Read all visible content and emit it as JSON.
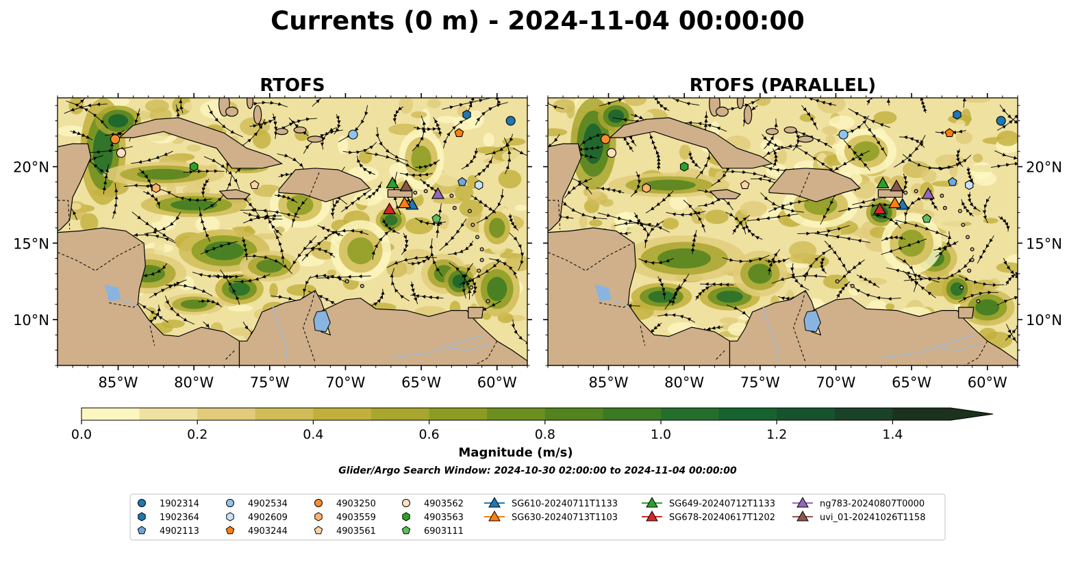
{
  "figure": {
    "title": "Currents (0 m) - 2024-11-04 00:00:00",
    "search_window": "Glider/Argo Search Window: 2024-10-30 02:00:00 to 2024-11-04 00:00:00"
  },
  "panels": [
    {
      "id": "rtofs",
      "title": "RTOFS"
    },
    {
      "id": "rtofs-parallel",
      "title": "RTOFS (PARALLEL)"
    }
  ],
  "map": {
    "lon_range": [
      -89,
      -58
    ],
    "lat_range": [
      7,
      24.5
    ],
    "lon_ticks": [
      -85,
      -80,
      -75,
      -70,
      -65,
      -60
    ],
    "lon_tick_labels": [
      "85°W",
      "80°W",
      "75°W",
      "70°W",
      "65°W",
      "60°W"
    ],
    "lat_ticks": [
      10,
      15,
      20
    ],
    "lat_tick_labels": [
      "10°N",
      "15°N",
      "20°N"
    ],
    "colors": {
      "land": "#cfb08a",
      "lake": "#8ab4e0",
      "river": "#9fb8d6",
      "border": "#000000"
    }
  },
  "colorbar": {
    "label": "Magnitude (m/s)",
    "range": [
      0,
      1.5
    ],
    "extend": "max",
    "ticks": [
      0.0,
      0.2,
      0.4,
      0.6,
      0.8,
      1.0,
      1.2,
      1.4
    ],
    "tick_labels": [
      "0.0",
      "0.2",
      "0.4",
      "0.6",
      "0.8",
      "1.0",
      "1.2",
      "1.4"
    ],
    "levels": [
      "#fcf6c0",
      "#efe1a0",
      "#e0cc7a",
      "#d0bc58",
      "#c2b03c",
      "#a9a630",
      "#8c9c22",
      "#6c8e1e",
      "#52831e",
      "#3b7a22",
      "#246e2c",
      "#16632f",
      "#17532d",
      "#1a4226",
      "#1b321d"
    ]
  },
  "legend": {
    "argo": [
      {
        "id": "1902314",
        "marker": "circle",
        "color": "#1f77b4"
      },
      {
        "id": "1902364",
        "marker": "hexagon",
        "color": "#1f77b4"
      },
      {
        "id": "4902113",
        "marker": "pentagon",
        "color": "#6fa8dc"
      },
      {
        "id": "4902534",
        "marker": "circle",
        "color": "#8ec5ee"
      },
      {
        "id": "4902609",
        "marker": "hexagon",
        "color": "#c8e2f8"
      },
      {
        "id": "4903244",
        "marker": "pentagon",
        "color": "#ff7f0e"
      },
      {
        "id": "4903250",
        "marker": "circle",
        "color": "#ff8c2a"
      },
      {
        "id": "4903559",
        "marker": "hexagon",
        "color": "#ffb26b"
      },
      {
        "id": "4903561",
        "marker": "pentagon",
        "color": "#ffd3a6"
      },
      {
        "id": "4903562",
        "marker": "circle",
        "color": "#fde0c4"
      },
      {
        "id": "4903563",
        "marker": "hexagon",
        "color": "#2ca02c"
      },
      {
        "id": "6903111",
        "marker": "pentagon",
        "color": "#5cc15c"
      }
    ],
    "gliders": [
      {
        "id": "SG610-20240711T1133",
        "color": "#1f77b4"
      },
      {
        "id": "SG630-20240713T1103",
        "color": "#ff7f0e"
      },
      {
        "id": "SG649-20240712T1133",
        "color": "#2ca02c"
      },
      {
        "id": "SG678-20240617T1202",
        "color": "#d62728"
      },
      {
        "id": "ng783-20240807T0000",
        "color": "#9467bd"
      },
      {
        "id": "uvi_01-20241026T1158",
        "color": "#8c564b"
      }
    ]
  },
  "chart_data": {
    "type": "map",
    "argo_positions": [
      {
        "id": "1902314",
        "lon": -59.1,
        "lat": 23.0
      },
      {
        "id": "1902364",
        "lon": -62.0,
        "lat": 23.4
      },
      {
        "id": "4902113",
        "lon": -62.3,
        "lat": 19.0
      },
      {
        "id": "4902534",
        "lon": -69.5,
        "lat": 22.1
      },
      {
        "id": "4902609",
        "lon": -61.2,
        "lat": 18.8
      },
      {
        "id": "4903244",
        "lon": -62.5,
        "lat": 22.2
      },
      {
        "id": "4903250",
        "lon": -85.2,
        "lat": 21.8
      },
      {
        "id": "4903559",
        "lon": -82.5,
        "lat": 18.6
      },
      {
        "id": "4903561",
        "lon": -76.0,
        "lat": 18.8
      },
      {
        "id": "4903562",
        "lon": -84.8,
        "lat": 20.9
      },
      {
        "id": "4903563",
        "lon": -80.0,
        "lat": 20.0
      },
      {
        "id": "6903111",
        "lon": -64.0,
        "lat": 16.6
      }
    ],
    "glider_positions": [
      {
        "id": "SG610-20240711T1133",
        "lon": -65.6,
        "lat": 17.5
      },
      {
        "id": "SG630-20240713T1103",
        "lon": -66.1,
        "lat": 17.6
      },
      {
        "id": "SG649-20240712T1133",
        "lon": -66.9,
        "lat": 18.9
      },
      {
        "id": "SG678-20240617T1202",
        "lon": -67.1,
        "lat": 17.2
      },
      {
        "id": "ng783-20240807T0000",
        "lon": -63.9,
        "lat": 18.2
      },
      {
        "id": "uvi_01-20241026T1158",
        "lon": -66.0,
        "lat": 18.7
      }
    ]
  }
}
